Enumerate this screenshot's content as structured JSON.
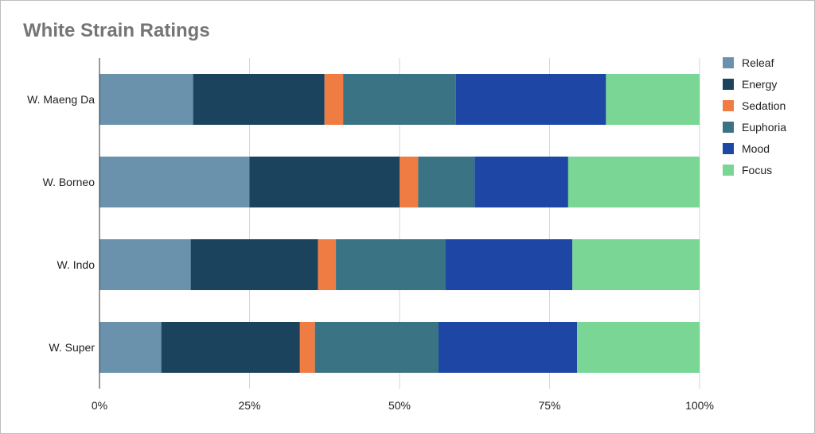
{
  "chart_data": {
    "type": "bar",
    "orientation": "horizontal",
    "stacked": "percent",
    "title": "White Strain Ratings",
    "xlabel": "",
    "ylabel": "",
    "categories": [
      "W. Maeng Da",
      "W. Borneo",
      "W. Indo",
      "W. Super"
    ],
    "xlim": [
      0,
      100
    ],
    "x_ticks": [
      "0%",
      "25%",
      "50%",
      "75%",
      "100%"
    ],
    "grid": "vertical",
    "legend_position": "right",
    "series": [
      {
        "name": "Releaf",
        "color": "#6a92ad",
        "values": [
          15.6,
          25.0,
          15.2,
          10.3
        ]
      },
      {
        "name": "Energy",
        "color": "#1b435e",
        "values": [
          21.9,
          25.0,
          21.2,
          23.1
        ]
      },
      {
        "name": "Sedation",
        "color": "#ef7c42",
        "values": [
          3.1,
          3.1,
          3.0,
          2.5
        ]
      },
      {
        "name": "Euphoria",
        "color": "#3a7384",
        "values": [
          18.8,
          9.4,
          18.2,
          20.6
        ]
      },
      {
        "name": "Mood",
        "color": "#1e46a5",
        "values": [
          25.0,
          15.6,
          21.2,
          23.1
        ]
      },
      {
        "name": "Focus",
        "color": "#79d694",
        "values": [
          15.6,
          21.9,
          21.2,
          20.4
        ]
      }
    ]
  }
}
